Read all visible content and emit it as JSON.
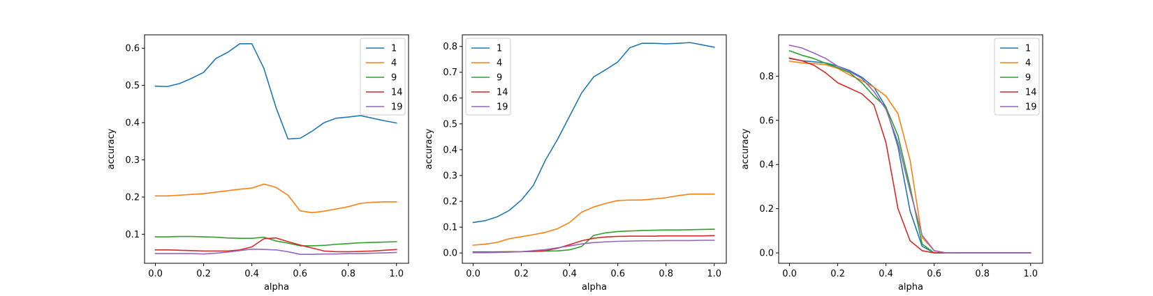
{
  "chart_data": [
    {
      "type": "line",
      "xlabel": "alpha",
      "ylabel": "accuracy",
      "xlim": [
        -0.045,
        1.05
      ],
      "ylim": [
        0.022,
        0.636
      ],
      "xticks": [
        0.0,
        0.2,
        0.4,
        0.6,
        0.8,
        1.0
      ],
      "yticks": [
        0.1,
        0.2,
        0.3,
        0.4,
        0.5,
        0.6
      ],
      "tick_decimals": 1,
      "legend_position": "upper right",
      "x": [
        0.0,
        0.05,
        0.1,
        0.15,
        0.2,
        0.25,
        0.3,
        0.35,
        0.4,
        0.45,
        0.5,
        0.55,
        0.6,
        0.65,
        0.7,
        0.75,
        0.8,
        0.85,
        0.9,
        0.95,
        1.0
      ],
      "series": [
        {
          "name": "1",
          "color": "#1f77b4",
          "values": [
            0.498,
            0.497,
            0.505,
            0.519,
            0.535,
            0.572,
            0.589,
            0.612,
            0.612,
            0.546,
            0.441,
            0.356,
            0.358,
            0.377,
            0.4,
            0.412,
            0.415,
            0.419,
            0.412,
            0.405,
            0.399
          ]
        },
        {
          "name": "4",
          "color": "#ff7f0e",
          "values": [
            0.203,
            0.203,
            0.205,
            0.207,
            0.209,
            0.213,
            0.217,
            0.221,
            0.224,
            0.235,
            0.226,
            0.205,
            0.163,
            0.158,
            0.162,
            0.168,
            0.174,
            0.183,
            0.186,
            0.187,
            0.187
          ]
        },
        {
          "name": "9",
          "color": "#2ca02c",
          "values": [
            0.093,
            0.093,
            0.094,
            0.094,
            0.093,
            0.092,
            0.09,
            0.089,
            0.089,
            0.092,
            0.082,
            0.076,
            0.069,
            0.069,
            0.07,
            0.073,
            0.075,
            0.077,
            0.078,
            0.079,
            0.08
          ]
        },
        {
          "name": "14",
          "color": "#d62728",
          "values": [
            0.058,
            0.058,
            0.057,
            0.056,
            0.055,
            0.055,
            0.055,
            0.058,
            0.066,
            0.088,
            0.09,
            0.08,
            0.071,
            0.063,
            0.055,
            0.053,
            0.053,
            0.054,
            0.055,
            0.057,
            0.059
          ]
        },
        {
          "name": "19",
          "color": "#9467bd",
          "values": [
            0.048,
            0.048,
            0.048,
            0.048,
            0.047,
            0.049,
            0.052,
            0.056,
            0.06,
            0.059,
            0.058,
            0.053,
            0.046,
            0.046,
            0.047,
            0.047,
            0.048,
            0.048,
            0.049,
            0.05,
            0.051
          ]
        }
      ]
    },
    {
      "type": "line",
      "xlabel": "alpha",
      "ylabel": "accuracy",
      "xlim": [
        -0.045,
        1.05
      ],
      "ylim": [
        -0.04,
        0.845
      ],
      "xticks": [
        0.0,
        0.2,
        0.4,
        0.6,
        0.8,
        1.0
      ],
      "yticks": [
        0.0,
        0.1,
        0.2,
        0.3,
        0.4,
        0.5,
        0.6,
        0.7,
        0.8
      ],
      "tick_decimals": 1,
      "legend_position": "upper left",
      "x": [
        0.0,
        0.05,
        0.1,
        0.15,
        0.2,
        0.25,
        0.3,
        0.35,
        0.4,
        0.45,
        0.5,
        0.55,
        0.6,
        0.65,
        0.7,
        0.75,
        0.8,
        0.85,
        0.9,
        0.95,
        1.0
      ],
      "series": [
        {
          "name": "1",
          "color": "#1f77b4",
          "values": [
            0.118,
            0.125,
            0.14,
            0.165,
            0.205,
            0.262,
            0.36,
            0.44,
            0.53,
            0.62,
            0.682,
            0.71,
            0.74,
            0.795,
            0.812,
            0.812,
            0.81,
            0.812,
            0.815,
            0.806,
            0.797
          ]
        },
        {
          "name": "4",
          "color": "#ff7f0e",
          "values": [
            0.03,
            0.034,
            0.041,
            0.055,
            0.063,
            0.071,
            0.08,
            0.094,
            0.118,
            0.158,
            0.178,
            0.192,
            0.203,
            0.205,
            0.205,
            0.209,
            0.214,
            0.222,
            0.228,
            0.228,
            0.228
          ]
        },
        {
          "name": "9",
          "color": "#2ca02c",
          "values": [
            0.004,
            0.004,
            0.004,
            0.005,
            0.005,
            0.006,
            0.007,
            0.008,
            0.012,
            0.025,
            0.068,
            0.078,
            0.083,
            0.085,
            0.087,
            0.088,
            0.089,
            0.089,
            0.09,
            0.091,
            0.092
          ]
        },
        {
          "name": "14",
          "color": "#d62728",
          "values": [
            0.003,
            0.003,
            0.004,
            0.004,
            0.005,
            0.006,
            0.009,
            0.018,
            0.032,
            0.047,
            0.057,
            0.062,
            0.064,
            0.065,
            0.065,
            0.065,
            0.066,
            0.066,
            0.066,
            0.066,
            0.067
          ]
        },
        {
          "name": "19",
          "color": "#9467bd",
          "values": [
            0.001,
            0.001,
            0.002,
            0.003,
            0.005,
            0.009,
            0.013,
            0.02,
            0.027,
            0.035,
            0.04,
            0.043,
            0.045,
            0.046,
            0.047,
            0.047,
            0.048,
            0.048,
            0.048,
            0.049,
            0.049
          ]
        }
      ]
    },
    {
      "type": "line",
      "xlabel": "alpha",
      "ylabel": "accuracy",
      "xlim": [
        -0.045,
        1.05
      ],
      "ylim": [
        -0.047,
        0.987
      ],
      "xticks": [
        0.0,
        0.2,
        0.4,
        0.6,
        0.8,
        1.0
      ],
      "yticks": [
        0.0,
        0.2,
        0.4,
        0.6,
        0.8
      ],
      "tick_decimals": 1,
      "legend_position": "upper right",
      "x": [
        0.0,
        0.05,
        0.1,
        0.15,
        0.2,
        0.25,
        0.3,
        0.35,
        0.4,
        0.45,
        0.5,
        0.55,
        0.6,
        0.65,
        0.7,
        0.75,
        0.8,
        0.85,
        0.9,
        0.95,
        1.0
      ],
      "series": [
        {
          "name": "1",
          "color": "#1f77b4",
          "values": [
            0.88,
            0.87,
            0.865,
            0.86,
            0.845,
            0.825,
            0.795,
            0.75,
            0.66,
            0.48,
            0.19,
            0.03,
            0.0,
            0.0,
            0.0,
            0.0,
            0.0,
            0.0,
            0.0,
            0.0,
            0.0
          ]
        },
        {
          "name": "4",
          "color": "#ff7f0e",
          "values": [
            0.868,
            0.86,
            0.857,
            0.852,
            0.835,
            0.805,
            0.78,
            0.75,
            0.71,
            0.63,
            0.42,
            0.07,
            0.01,
            0.0,
            0.0,
            0.0,
            0.0,
            0.0,
            0.0,
            0.0,
            0.0
          ]
        },
        {
          "name": "9",
          "color": "#2ca02c",
          "values": [
            0.915,
            0.895,
            0.88,
            0.858,
            0.838,
            0.815,
            0.77,
            0.71,
            0.66,
            0.53,
            0.3,
            0.04,
            0.0,
            0.0,
            0.0,
            0.0,
            0.0,
            0.0,
            0.0,
            0.0,
            0.0
          ]
        },
        {
          "name": "14",
          "color": "#d62728",
          "values": [
            0.882,
            0.87,
            0.85,
            0.815,
            0.77,
            0.745,
            0.72,
            0.67,
            0.5,
            0.2,
            0.055,
            0.01,
            0.0,
            0.0,
            0.0,
            0.0,
            0.0,
            0.0,
            0.0,
            0.0,
            0.0
          ]
        },
        {
          "name": "19",
          "color": "#9467bd",
          "values": [
            0.94,
            0.928,
            0.905,
            0.88,
            0.845,
            0.82,
            0.79,
            0.73,
            0.65,
            0.5,
            0.28,
            0.08,
            0.01,
            0.0,
            0.0,
            0.0,
            0.0,
            0.0,
            0.0,
            0.0,
            0.0
          ]
        }
      ]
    }
  ]
}
